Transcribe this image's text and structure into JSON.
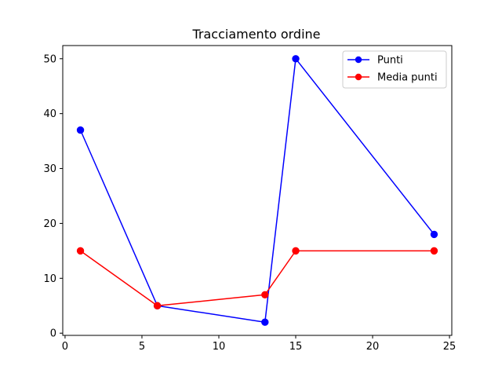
{
  "chart_data": {
    "type": "line",
    "title": "Tracciamento ordine",
    "xlabel": "",
    "ylabel": "",
    "xlim": [
      -0.15,
      25.15
    ],
    "ylim": [
      -0.4,
      52.4
    ],
    "xticks": [
      0,
      5,
      10,
      15,
      20,
      25
    ],
    "yticks": [
      0,
      10,
      20,
      30,
      40,
      50
    ],
    "grid": false,
    "legend_position": "top-right",
    "series": [
      {
        "name": "Punti",
        "color": "#0000ff",
        "marker": "circle",
        "x": [
          1,
          6,
          13,
          15,
          24
        ],
        "y": [
          37,
          5,
          2,
          50,
          18
        ]
      },
      {
        "name": "Media punti",
        "color": "#ff0000",
        "marker": "circle",
        "x": [
          1,
          6,
          13,
          15,
          24
        ],
        "y": [
          15,
          5,
          7,
          15,
          15
        ]
      }
    ]
  }
}
